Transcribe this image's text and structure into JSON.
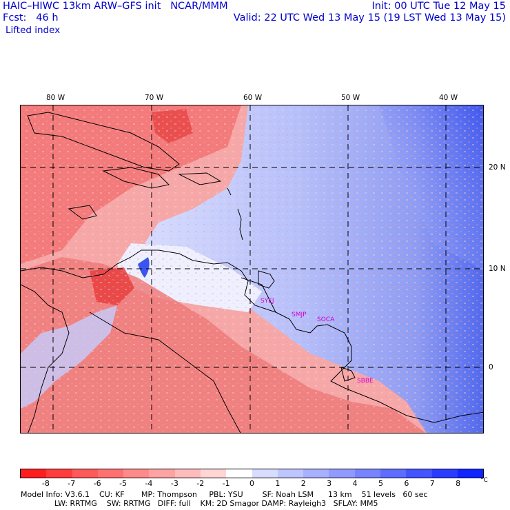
{
  "header": {
    "model_title": "HAIC–HIWC 13km ARW–GFS init   NCAR/MMM",
    "forecast": "Fcst:   46 h",
    "field": "Lifted index",
    "init": "Init: 00 UTC Tue 12 May 15",
    "valid": "Valid: 22 UTC Wed 13 May 15 (19 LST Wed 13 May 15)"
  },
  "map": {
    "lon_labels": [
      "80 W",
      "70 W",
      "60 W",
      "50 W",
      "40 W"
    ],
    "lat_labels": [
      "20 N",
      "10 N",
      "0"
    ],
    "sites": [
      "SYEJ",
      "SMJP",
      "SOCA",
      "SBBE"
    ],
    "field_description_colors": {
      "warm": "#f06060",
      "neutral": "#ffffff",
      "cool": "#8c9cf0"
    }
  },
  "colorbar": {
    "labels": [
      "-8",
      "-7",
      "-6",
      "-5",
      "-4",
      "-3",
      "-2",
      "-1",
      "0",
      "1",
      "2",
      "3",
      "4",
      "5",
      "6",
      "7",
      "8"
    ],
    "unit": "°C",
    "colors": [
      "#ff1e1e",
      "#ff3c3c",
      "#ff5a5a",
      "#ff7070",
      "#ff8a8a",
      "#ffa2a2",
      "#ffbcbc",
      "#ffd6d6",
      "#ffffff",
      "#d8dcff",
      "#bfc6ff",
      "#a8b0ff",
      "#909aff",
      "#7884ff",
      "#5e6cff",
      "#4454ff",
      "#2a3cff",
      "#1024ff"
    ]
  },
  "footer": {
    "line1": "Model Info: V3.6.1    CU: KF       MP: Thompson     PBL: YSU        SF: Noah LSM      13 km    51 levels   60 sec",
    "line2": "              LW: RRTMG    SW: RRTMG   DIFF: full    KM: 2D Smagor DAMP: Rayleigh3   SFLAY: MM5"
  }
}
